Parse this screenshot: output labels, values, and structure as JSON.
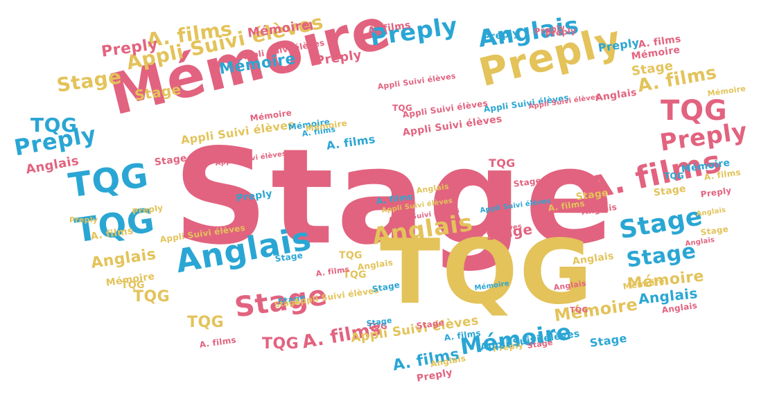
{
  "colors": {
    "pink": "#e2637f",
    "blue": "#2aa6d4",
    "gold": "#e3c35a",
    "background": "#ffffff"
  },
  "words": [
    {
      "text": "Stage",
      "color": "pink"
    },
    {
      "text": "TQG",
      "color": "gold"
    },
    {
      "text": "Mémoire",
      "color": "pink"
    },
    {
      "text": "Preply",
      "color": "gold"
    },
    {
      "text": "Anglais",
      "color": "blue"
    },
    {
      "text": "Anglais",
      "color": "blue"
    },
    {
      "text": "Stage",
      "color": "pink"
    },
    {
      "text": "A. films",
      "color": "pink"
    },
    {
      "text": "TQG",
      "color": "pink"
    },
    {
      "text": "TQG",
      "color": "blue"
    },
    {
      "text": "TQG",
      "color": "blue"
    },
    {
      "text": "Preply",
      "color": "blue"
    },
    {
      "text": "Preply",
      "color": "pink"
    },
    {
      "text": "Stage",
      "color": "blue"
    },
    {
      "text": "Stage",
      "color": "blue"
    },
    {
      "text": "Anglais",
      "color": "gold"
    },
    {
      "text": "Appli Suivi élèves",
      "color": "gold"
    },
    {
      "text": "Mémoire",
      "color": "blue"
    },
    {
      "text": "A. films",
      "color": "gold"
    },
    {
      "text": "Stage",
      "color": "gold"
    },
    {
      "text": "TQG",
      "color": "blue"
    },
    {
      "text": "Preply",
      "color": "blue"
    },
    {
      "text": "A. films",
      "color": "pink"
    },
    {
      "text": "Mémoire",
      "color": "gold"
    },
    {
      "text": "Mémoire",
      "color": "blue"
    },
    {
      "text": "Stage",
      "color": "pink"
    },
    {
      "text": "Anglais",
      "color": "gold"
    },
    {
      "text": "Mémoire",
      "color": "gold"
    },
    {
      "text": "Appli Suivi élèves",
      "color": "gold"
    },
    {
      "text": "A. films",
      "color": "gold"
    },
    {
      "text": "Preply",
      "color": "pink"
    },
    {
      "text": "A. films",
      "color": "blue"
    },
    {
      "text": "Stage",
      "color": "gold"
    },
    {
      "text": "Anglais",
      "color": "blue"
    },
    {
      "text": "Appli Suivi élèves",
      "color": "pink"
    },
    {
      "text": "Appli Suivi élèves",
      "color": "gold"
    },
    {
      "text": "Stage",
      "color": "pink"
    },
    {
      "text": "TQG",
      "color": "gold"
    },
    {
      "text": "TQG",
      "color": "gold"
    },
    {
      "text": "TQG",
      "color": "pink"
    },
    {
      "text": "Anglais",
      "color": "pink"
    },
    {
      "text": "Mémoire",
      "color": "blue"
    },
    {
      "text": "Stage",
      "color": "gold"
    },
    {
      "text": "Preply",
      "color": "pink"
    },
    {
      "text": "Mémoire",
      "color": "pink"
    },
    {
      "text": "Anglais",
      "color": "pink"
    },
    {
      "text": "A. films",
      "color": "gold"
    },
    {
      "text": "A. films",
      "color": "blue"
    },
    {
      "text": "Appli Suivi élèves",
      "color": "pink"
    },
    {
      "text": "Stage",
      "color": "gold"
    },
    {
      "text": "Preply",
      "color": "blue"
    },
    {
      "text": "TQG",
      "color": "pink"
    },
    {
      "text": "Preply",
      "color": "pink"
    },
    {
      "text": "Mémoire",
      "color": "blue"
    },
    {
      "text": "Mémoire",
      "color": "pink"
    },
    {
      "text": "A. films",
      "color": "pink"
    },
    {
      "text": "Preply",
      "color": "blue"
    },
    {
      "text": "Stage",
      "color": "gold"
    },
    {
      "text": "A. films",
      "color": "pink"
    },
    {
      "text": "Preply",
      "color": "pink"
    },
    {
      "text": "Appli Suivi élèves",
      "color": "blue"
    },
    {
      "text": "Stage",
      "color": "pink"
    },
    {
      "text": "Appli Suivi élèves",
      "color": "pink"
    },
    {
      "text": "A. films",
      "color": "gold"
    },
    {
      "text": "Preply",
      "color": "gold"
    },
    {
      "text": "Appli Suivi élèves",
      "color": "gold"
    },
    {
      "text": "TQG",
      "color": "gold"
    },
    {
      "text": "Stage",
      "color": "blue"
    },
    {
      "text": "A. films",
      "color": "pink"
    },
    {
      "text": "Stage",
      "color": "pink"
    },
    {
      "text": "TQG",
      "color": "pink"
    },
    {
      "text": "Anglais",
      "color": "gold"
    },
    {
      "text": "Mémoire",
      "color": "gold"
    },
    {
      "text": "TQG",
      "color": "gold"
    },
    {
      "text": "Anglais",
      "color": "gold"
    },
    {
      "text": "Appli Suivi élèves",
      "color": "pink"
    },
    {
      "text": "Anglais",
      "color": "pink"
    },
    {
      "text": "Stage",
      "color": "blue"
    },
    {
      "text": "A. films",
      "color": "blue"
    },
    {
      "text": "Preply",
      "color": "blue"
    },
    {
      "text": "Preply",
      "color": "pink"
    },
    {
      "text": "Mémoire",
      "color": "pink"
    },
    {
      "text": "Appli Suivi élèves",
      "color": "pink"
    },
    {
      "text": "Preply",
      "color": "gold"
    },
    {
      "text": "Stage",
      "color": "gold"
    },
    {
      "text": "Mémoire",
      "color": "gold"
    },
    {
      "text": "Anglais",
      "color": "pink"
    },
    {
      "text": "TQG",
      "color": "blue"
    },
    {
      "text": "A. films",
      "color": "gold"
    },
    {
      "text": "TQG",
      "color": "gold"
    },
    {
      "text": "A. films",
      "color": "pink"
    },
    {
      "text": "Stage",
      "color": "gold"
    },
    {
      "text": "Appli Suivi élèves",
      "color": "gold"
    },
    {
      "text": "Stage",
      "color": "blue"
    },
    {
      "text": "TQG",
      "color": "pink"
    },
    {
      "text": "Anglais",
      "color": "pink"
    },
    {
      "text": "Mémoire",
      "color": "gold"
    },
    {
      "text": "Stage",
      "color": "pink"
    },
    {
      "text": "Appli Suivi élèves",
      "color": "gold"
    },
    {
      "text": "Anglais",
      "color": "gold"
    },
    {
      "text": "TQG",
      "color": "pink"
    },
    {
      "text": "Stage",
      "color": "blue"
    },
    {
      "text": "Preply",
      "color": "gold"
    },
    {
      "text": "Appli Suivi élèves",
      "color": "blue"
    },
    {
      "text": "A. films",
      "color": "blue"
    },
    {
      "text": "Mémoire",
      "color": "blue"
    },
    {
      "text": "Appli Suivi élèves",
      "color": "pink"
    },
    {
      "text": "Stage",
      "color": "blue"
    },
    {
      "text": "A. films",
      "color": "blue"
    },
    {
      "text": "Preply",
      "color": "pink"
    },
    {
      "text": "Anglais",
      "color": "pink"
    },
    {
      "text": "Anglais",
      "color": "gold"
    },
    {
      "text": "Anglais",
      "color": "gold"
    },
    {
      "text": "Mémoire",
      "color": "gold"
    },
    {
      "text": "Appli Suivi élèves",
      "color": "blue"
    },
    {
      "text": "Appli Suivi élèves",
      "color": "pink"
    },
    {
      "text": "Appli Suivi élèves",
      "color": "pink"
    }
  ]
}
